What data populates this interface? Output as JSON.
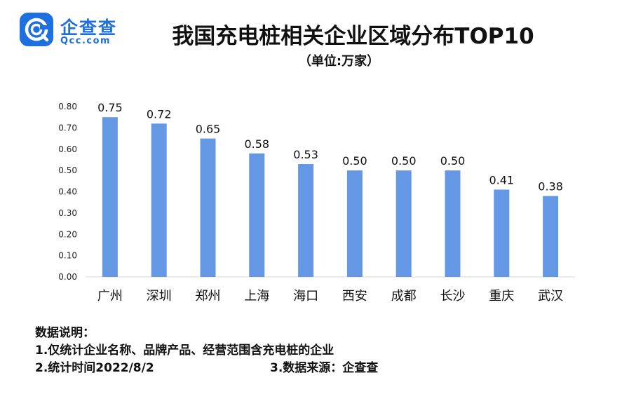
{
  "brand": {
    "name": "企查查",
    "domain": "Qcc.com",
    "color": "#1e6fe0"
  },
  "chart_data": {
    "type": "bar",
    "title": "我国充电桩相关企业区域分布TOP10",
    "subtitle": "（单位:万家）",
    "categories": [
      "广州",
      "深圳",
      "郑州",
      "上海",
      "海口",
      "西安",
      "成都",
      "长沙",
      "重庆",
      "武汉"
    ],
    "values": [
      0.75,
      0.72,
      0.65,
      0.58,
      0.53,
      0.5,
      0.5,
      0.5,
      0.41,
      0.38
    ],
    "value_labels": [
      "0.75",
      "0.72",
      "0.65",
      "0.58",
      "0.53",
      "0.50",
      "0.50",
      "0.50",
      "0.41",
      "0.38"
    ],
    "ylim": [
      0,
      0.8
    ],
    "yticks": [
      "0.00",
      "0.10",
      "0.20",
      "0.30",
      "0.40",
      "0.50",
      "0.60",
      "0.70",
      "0.80"
    ],
    "grid": false,
    "bar_color": "#6598e4"
  },
  "notes": {
    "heading": "数据说明：",
    "line1": "1.仅统计企业名称、品牌产品、经营范围含充电桩的企业",
    "line2": "2.统计时间2022/8/2",
    "line3": "3.数据来源：企查查"
  }
}
